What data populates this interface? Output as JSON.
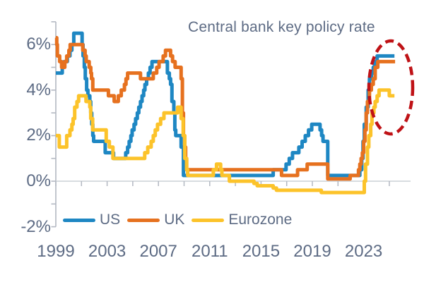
{
  "title": "Central bank key policy rate",
  "colors": {
    "us": "#1e87c3",
    "uk": "#e6711f",
    "eurozone": "#fcc32a",
    "text": "#5d6b84",
    "axis": "#b3b8c2",
    "gridline": "#ccd0d6",
    "annotation": "#bf1216",
    "background": "#ffffff"
  },
  "legend": {
    "items": [
      {
        "label": "US",
        "color_key": "us"
      },
      {
        "label": "UK",
        "color_key": "uk"
      },
      {
        "label": "Eurozone",
        "color_key": "eurozone"
      }
    ]
  },
  "chart_data": {
    "type": "line",
    "title": "Central bank key policy rate",
    "interpolation": "step-after",
    "y_axis": {
      "unit": "%",
      "range": [
        -2,
        7
      ],
      "minor_tick_interval": 1,
      "labels": [
        "6%",
        "4%",
        "2%",
        "0%",
        "-2%"
      ],
      "label_values": [
        6,
        4,
        2,
        0,
        -2
      ]
    },
    "x_axis": {
      "range": [
        1999,
        2025.5
      ],
      "minor_tick_interval_years": 2,
      "labels": [
        "1999",
        "2003",
        "2007",
        "2011",
        "2015",
        "2019",
        "2023"
      ],
      "label_values": [
        1999,
        2003,
        2007,
        2011,
        2015,
        2019,
        2023
      ]
    },
    "zero_line": true,
    "series": [
      {
        "name": "US",
        "color_key": "us",
        "points": [
          [
            1999.0,
            4.75
          ],
          [
            1999.5,
            5.0
          ],
          [
            1999.65,
            5.25
          ],
          [
            1999.9,
            5.5
          ],
          [
            2000.1,
            5.75
          ],
          [
            2000.25,
            6.0
          ],
          [
            2000.4,
            6.5
          ],
          [
            2001.05,
            6.0
          ],
          [
            2001.12,
            5.5
          ],
          [
            2001.22,
            5.0
          ],
          [
            2001.3,
            4.5
          ],
          [
            2001.4,
            4.0
          ],
          [
            2001.5,
            3.75
          ],
          [
            2001.65,
            3.5
          ],
          [
            2001.72,
            3.0
          ],
          [
            2001.8,
            2.5
          ],
          [
            2001.88,
            2.0
          ],
          [
            2001.95,
            1.75
          ],
          [
            2002.85,
            1.25
          ],
          [
            2003.5,
            1.0
          ],
          [
            2004.45,
            1.25
          ],
          [
            2004.6,
            1.5
          ],
          [
            2004.72,
            1.75
          ],
          [
            2004.85,
            2.0
          ],
          [
            2004.95,
            2.25
          ],
          [
            2005.1,
            2.5
          ],
          [
            2005.22,
            2.75
          ],
          [
            2005.35,
            3.0
          ],
          [
            2005.47,
            3.25
          ],
          [
            2005.6,
            3.5
          ],
          [
            2005.72,
            3.75
          ],
          [
            2005.85,
            4.0
          ],
          [
            2005.95,
            4.25
          ],
          [
            2006.08,
            4.5
          ],
          [
            2006.22,
            4.75
          ],
          [
            2006.35,
            5.0
          ],
          [
            2006.5,
            5.25
          ],
          [
            2007.7,
            4.75
          ],
          [
            2007.85,
            4.5
          ],
          [
            2007.95,
            4.25
          ],
          [
            2008.05,
            3.5
          ],
          [
            2008.2,
            3.0
          ],
          [
            2008.28,
            2.25
          ],
          [
            2008.35,
            2.0
          ],
          [
            2008.77,
            1.5
          ],
          [
            2008.95,
            0.25
          ],
          [
            2015.95,
            0.5
          ],
          [
            2016.95,
            0.75
          ],
          [
            2017.2,
            1.0
          ],
          [
            2017.45,
            1.25
          ],
          [
            2017.95,
            1.5
          ],
          [
            2018.2,
            1.75
          ],
          [
            2018.45,
            2.0
          ],
          [
            2018.7,
            2.25
          ],
          [
            2018.95,
            2.5
          ],
          [
            2019.6,
            2.25
          ],
          [
            2019.72,
            2.0
          ],
          [
            2019.83,
            1.75
          ],
          [
            2020.2,
            0.25
          ],
          [
            2022.7,
            0.5
          ],
          [
            2022.85,
            1.0
          ],
          [
            2022.95,
            1.75
          ],
          [
            2023.05,
            2.5
          ],
          [
            2023.2,
            3.25
          ],
          [
            2023.35,
            4.0
          ],
          [
            2023.45,
            4.5
          ],
          [
            2023.6,
            4.75
          ],
          [
            2023.75,
            5.0
          ],
          [
            2023.85,
            5.25
          ],
          [
            2024.05,
            5.5
          ],
          [
            2025.4,
            5.5
          ]
        ]
      },
      {
        "name": "UK",
        "color_key": "uk",
        "points": [
          [
            1999.0,
            6.3
          ],
          [
            1999.07,
            6.0
          ],
          [
            1999.12,
            5.5
          ],
          [
            1999.3,
            5.25
          ],
          [
            1999.45,
            5.0
          ],
          [
            1999.7,
            5.25
          ],
          [
            1999.85,
            5.5
          ],
          [
            2000.02,
            5.75
          ],
          [
            2000.12,
            6.0
          ],
          [
            2001.1,
            5.75
          ],
          [
            2001.28,
            5.5
          ],
          [
            2001.37,
            5.25
          ],
          [
            2001.6,
            5.0
          ],
          [
            2001.73,
            4.75
          ],
          [
            2001.78,
            4.5
          ],
          [
            2001.88,
            4.0
          ],
          [
            2003.1,
            3.75
          ],
          [
            2003.55,
            3.5
          ],
          [
            2003.87,
            3.75
          ],
          [
            2004.1,
            4.0
          ],
          [
            2004.35,
            4.25
          ],
          [
            2004.47,
            4.5
          ],
          [
            2004.6,
            4.75
          ],
          [
            2005.6,
            4.5
          ],
          [
            2006.6,
            4.75
          ],
          [
            2006.87,
            5.0
          ],
          [
            2007.05,
            5.25
          ],
          [
            2007.37,
            5.5
          ],
          [
            2007.55,
            5.75
          ],
          [
            2007.95,
            5.5
          ],
          [
            2008.1,
            5.25
          ],
          [
            2008.3,
            5.0
          ],
          [
            2008.77,
            4.5
          ],
          [
            2008.87,
            3.0
          ],
          [
            2008.95,
            2.0
          ],
          [
            2009.05,
            1.5
          ],
          [
            2009.12,
            1.0
          ],
          [
            2009.2,
            0.5
          ],
          [
            2016.6,
            0.25
          ],
          [
            2017.85,
            0.5
          ],
          [
            2018.6,
            0.75
          ],
          [
            2020.2,
            0.1
          ],
          [
            2021.95,
            0.25
          ],
          [
            2022.6,
            0.5
          ],
          [
            2022.7,
            0.75
          ],
          [
            2022.8,
            1.0
          ],
          [
            2022.9,
            1.25
          ],
          [
            2023.0,
            1.75
          ],
          [
            2023.1,
            2.25
          ],
          [
            2023.2,
            3.0
          ],
          [
            2023.3,
            3.5
          ],
          [
            2023.45,
            4.0
          ],
          [
            2023.6,
            4.25
          ],
          [
            2023.75,
            4.5
          ],
          [
            2023.9,
            5.0
          ],
          [
            2024.1,
            5.25
          ],
          [
            2025.45,
            5.25
          ]
        ]
      },
      {
        "name": "Eurozone",
        "color_key": "eurozone",
        "points": [
          [
            1999.0,
            2.0
          ],
          [
            1999.27,
            1.5
          ],
          [
            1999.85,
            2.0
          ],
          [
            2000.1,
            2.25
          ],
          [
            2000.25,
            2.5
          ],
          [
            2000.35,
            2.75
          ],
          [
            2000.47,
            3.25
          ],
          [
            2000.65,
            3.5
          ],
          [
            2000.78,
            3.75
          ],
          [
            2001.35,
            3.5
          ],
          [
            2001.65,
            3.25
          ],
          [
            2001.72,
            2.75
          ],
          [
            2001.87,
            2.25
          ],
          [
            2002.93,
            1.75
          ],
          [
            2003.17,
            1.5
          ],
          [
            2003.45,
            1.0
          ],
          [
            2005.93,
            1.25
          ],
          [
            2006.17,
            1.5
          ],
          [
            2006.43,
            1.75
          ],
          [
            2006.6,
            2.0
          ],
          [
            2006.75,
            2.25
          ],
          [
            2006.93,
            2.5
          ],
          [
            2007.17,
            2.75
          ],
          [
            2007.43,
            3.0
          ],
          [
            2008.5,
            3.25
          ],
          [
            2008.77,
            2.75
          ],
          [
            2008.93,
            2.0
          ],
          [
            2009.05,
            1.0
          ],
          [
            2009.2,
            0.5
          ],
          [
            2009.28,
            0.25
          ],
          [
            2011.28,
            0.5
          ],
          [
            2011.53,
            0.75
          ],
          [
            2011.85,
            0.5
          ],
          [
            2011.95,
            0.25
          ],
          [
            2012.53,
            0.0
          ],
          [
            2014.45,
            -0.1
          ],
          [
            2014.7,
            -0.2
          ],
          [
            2015.95,
            -0.3
          ],
          [
            2016.2,
            -0.4
          ],
          [
            2019.7,
            -0.5
          ],
          [
            2023.05,
            0.0
          ],
          [
            2023.15,
            0.75
          ],
          [
            2023.3,
            1.5
          ],
          [
            2023.4,
            2.0
          ],
          [
            2023.55,
            2.5
          ],
          [
            2023.65,
            3.0
          ],
          [
            2023.8,
            3.25
          ],
          [
            2023.9,
            3.5
          ],
          [
            2024.05,
            3.75
          ],
          [
            2024.2,
            4.0
          ],
          [
            2025.0,
            3.75
          ],
          [
            2025.4,
            3.75
          ]
        ]
      }
    ],
    "annotation": {
      "type": "dashed-ellipse",
      "highlights": "2022-2024 rate-hike peak",
      "color": "#bf1216"
    }
  }
}
